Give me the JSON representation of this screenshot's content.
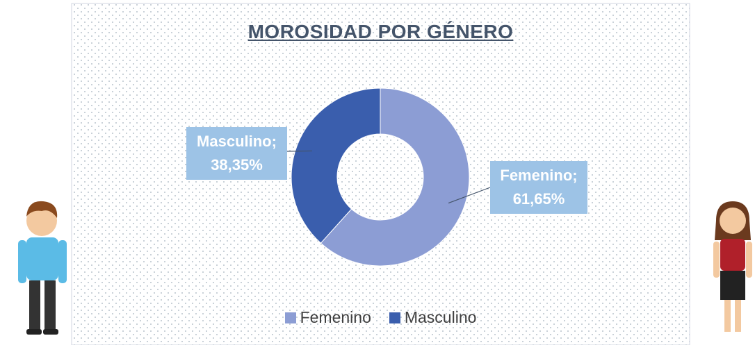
{
  "chart_data": {
    "type": "donut",
    "title": "MOROSIDAD POR GÉNERO",
    "categories": [
      "Femenino",
      "Masculino"
    ],
    "values": [
      61.65,
      38.35
    ],
    "value_labels": [
      "Femenino; 61,65%",
      "Masculino; 38,35%"
    ],
    "colors": [
      "#8c9dd4",
      "#3a5ead"
    ],
    "legend": "bottom"
  }
}
